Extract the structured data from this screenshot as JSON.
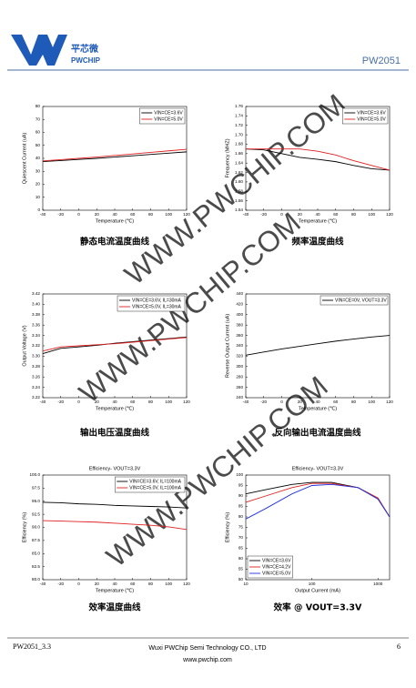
{
  "header": {
    "logo_cn": "平芯微",
    "logo_en": "PWCHIP",
    "part": "PW2051"
  },
  "watermark": "WWW.PWCHIP.COM",
  "footer": {
    "doc": "PW2051_3.3",
    "company": "Wuxi PWChip Semi Technology CO., LTD",
    "website": "www.pwchip.com",
    "page": "6"
  },
  "chart_data": [
    {
      "type": "line",
      "caption": "静态电流温度曲线",
      "xlabel": "Temperature (℃)",
      "ylabel": "Quiescent Current (uA)",
      "x": [
        -40,
        -20,
        0,
        20,
        40,
        60,
        80,
        100,
        120
      ],
      "series": [
        {
          "name": "VIN=CE=3.6V",
          "color": "#000000",
          "values": [
            37.5,
            38.3,
            39.2,
            40,
            41,
            42,
            43,
            44,
            45
          ]
        },
        {
          "name": "VIN=CE=5.0V",
          "color": "#e02020",
          "values": [
            38,
            39,
            40,
            41,
            42.2,
            43.4,
            44.6,
            45.8,
            47
          ]
        }
      ],
      "xlim": [
        -40,
        120
      ],
      "xticks": [
        -40,
        -20,
        0,
        20,
        40,
        60,
        80,
        100,
        120
      ],
      "ylim": [
        0,
        80
      ],
      "yticks": [
        0,
        10,
        20,
        30,
        40,
        50,
        60,
        70,
        80
      ],
      "legend": "upper right"
    },
    {
      "type": "line",
      "caption": "频率温度曲线",
      "xlabel": "Temperature (℃)",
      "ylabel": "Frequency (MHZ)",
      "x": [
        -40,
        -20,
        0,
        20,
        40,
        60,
        80,
        100,
        120
      ],
      "series": [
        {
          "name": "VIN=CE=3.6V",
          "color": "#000000",
          "values": [
            1.67,
            1.668,
            1.66,
            1.652,
            1.648,
            1.643,
            1.635,
            1.628,
            1.625
          ]
        },
        {
          "name": "VIN=CE=5.0V",
          "color": "#e02020",
          "values": [
            1.67,
            1.67,
            1.67,
            1.67,
            1.665,
            1.657,
            1.645,
            1.635,
            1.625
          ]
        }
      ],
      "xlim": [
        -40,
        120
      ],
      "xticks": [
        -40,
        -20,
        0,
        20,
        40,
        60,
        80,
        100,
        120
      ],
      "ylim": [
        1.54,
        1.76
      ],
      "yticks": [
        1.54,
        1.56,
        1.58,
        {
          "value": 1.6,
          "label": "1.60"
        },
        1.62,
        1.64,
        1.66,
        1.68,
        {
          "value": 1.7,
          "label": "1.70"
        },
        1.72,
        1.74,
        1.76
      ],
      "legend": "upper right"
    },
    {
      "type": "line",
      "caption": "输出电压温度曲线",
      "xlabel": "Temperature (℃)",
      "ylabel": "Output Voltage (V)",
      "x": [
        -40,
        -20,
        0,
        20,
        40,
        60,
        80,
        100,
        120
      ],
      "series": [
        {
          "name": "VIN=CE=3.6V, IL=30mA",
          "color": "#000000",
          "values": [
            3.305,
            3.315,
            3.318,
            3.321,
            3.325,
            3.328,
            3.331,
            3.334,
            3.337
          ]
        },
        {
          "name": "VIN=CE=5.0V, IL=30mA",
          "color": "#e02020",
          "values": [
            3.31,
            3.318,
            3.32,
            3.322,
            3.324,
            3.327,
            3.33,
            3.333,
            3.336
          ]
        }
      ],
      "xlim": [
        -40,
        120
      ],
      "xticks": [
        -40,
        -20,
        0,
        20,
        40,
        60,
        80,
        100,
        120
      ],
      "ylim": [
        3.22,
        3.42
      ],
      "yticks": [
        3.22,
        3.24,
        3.26,
        3.28,
        {
          "value": 3.3,
          "label": "3.30"
        },
        3.32,
        3.34,
        3.36,
        3.38,
        {
          "value": 3.4,
          "label": "3.40"
        },
        3.42
      ],
      "legend": "upper right"
    },
    {
      "type": "line",
      "caption": "反向输出电流温度曲线",
      "xlabel": "Temperature (℃)",
      "ylabel": "Reverse Output Current (uA)",
      "x": [
        -40,
        -20,
        0,
        20,
        40,
        60,
        80,
        100,
        120
      ],
      "series": [
        {
          "name": "VIN=CE=0V, VOUT=3.3V",
          "color": "#000000",
          "values": [
            322,
            328,
            334,
            339,
            344,
            349,
            353,
            357,
            360
          ]
        }
      ],
      "xlim": [
        -40,
        120
      ],
      "xticks": [
        -40,
        -20,
        0,
        20,
        40,
        60,
        80,
        100,
        120
      ],
      "ylim": [
        240,
        440
      ],
      "yticks": [
        240,
        260,
        280,
        300,
        320,
        340,
        360,
        380,
        400,
        420,
        440
      ],
      "legend": "upper right"
    },
    {
      "type": "line",
      "title": "Efficiency- VOUT=3.3V",
      "caption": "效率温度曲线",
      "xlabel": "Temperature (℃)",
      "ylabel": "Efficiency (%)",
      "x": [
        -40,
        -20,
        0,
        20,
        40,
        60,
        80,
        100,
        120
      ],
      "series": [
        {
          "name": "VIN=CE=3.6V, IL=100mA",
          "color": "#000000",
          "values": [
            94.8,
            94.7,
            94.5,
            94.4,
            94.2,
            94.1,
            94,
            93.9,
            93.7
          ]
        },
        {
          "name": "VIN=CE=5.0V, IL=100mA",
          "color": "#e02020",
          "values": [
            91.3,
            91.2,
            91.1,
            91,
            90.8,
            90.6,
            90.4,
            90.1,
            89.6
          ]
        }
      ],
      "xlim": [
        -40,
        120
      ],
      "xticks": [
        -40,
        -20,
        0,
        20,
        40,
        60,
        80,
        100,
        120
      ],
      "ylim": [
        80,
        100
      ],
      "yticks": [
        {
          "value": 80,
          "label": "80.0"
        },
        82.5,
        {
          "value": 85,
          "label": "85.0"
        },
        87.5,
        {
          "value": 90,
          "label": "90.0"
        },
        92.5,
        {
          "value": 95,
          "label": "95.0"
        },
        97.5,
        {
          "value": 100,
          "label": "100.0"
        }
      ],
      "legend": "upper right"
    },
    {
      "type": "line",
      "title": "Efficiency- VOUT=3.3V",
      "caption": "效率 @ VOUT=3.3V",
      "xlabel": "Output Current (mA)",
      "ylabel": "Efficiency (%)",
      "x": [
        10,
        20,
        50,
        100,
        200,
        500,
        1000,
        1500
      ],
      "xscale": "log",
      "series": [
        {
          "name": "VIN=CE=3.6V",
          "color": "#000000",
          "values": [
            91,
            93,
            95.5,
            96.5,
            96.5,
            94,
            89,
            80
          ]
        },
        {
          "name": "VIN=CE=4.2V",
          "color": "#e02020",
          "values": [
            87,
            90,
            94,
            96,
            96,
            94,
            89,
            80
          ]
        },
        {
          "name": "VIN=CE=5.0V",
          "color": "#2030e0",
          "values": [
            79,
            84,
            91,
            95,
            95.5,
            94,
            88.5,
            80
          ]
        }
      ],
      "xlim": [
        10,
        1500
      ],
      "xticks": [
        10,
        100,
        1000
      ],
      "ylim": [
        50,
        100
      ],
      "yticks": [
        50,
        55,
        60,
        65,
        70,
        75,
        80,
        85,
        90,
        95,
        100
      ],
      "legend": "lower left"
    }
  ]
}
